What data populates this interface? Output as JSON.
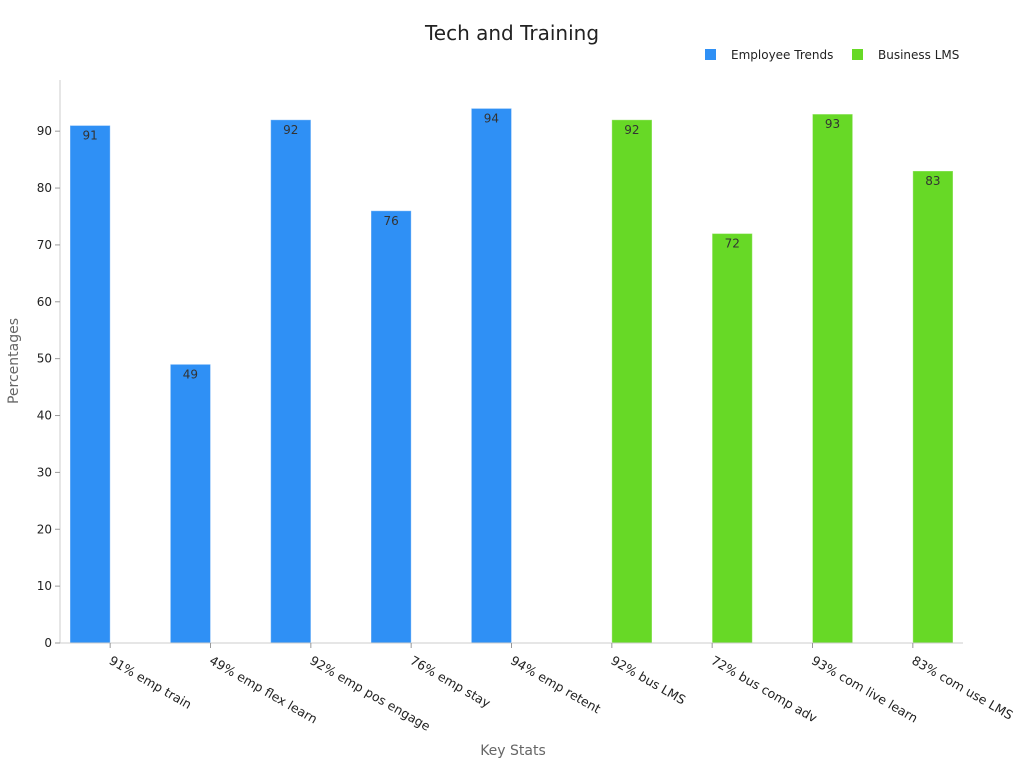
{
  "chart_data": {
    "type": "bar",
    "title": "Tech and Training",
    "xlabel": "Key Stats",
    "ylabel": "Percentages",
    "ylim": [
      0,
      99
    ],
    "yticks": [
      0,
      10,
      20,
      30,
      40,
      50,
      60,
      70,
      80,
      90
    ],
    "grid": false,
    "legend_position": "top-right",
    "categories": [
      "91% emp train",
      "49% emp flex learn",
      "92% emp pos engage",
      "76% emp stay",
      "94% emp retent",
      "92% bus LMS",
      "72% bus comp adv",
      "93% com live learn",
      "83% com use LMS"
    ],
    "series": [
      {
        "name": "Employee Trends",
        "color": "#2f90f5",
        "values": [
          91,
          49,
          92,
          76,
          94,
          null,
          null,
          null,
          null
        ]
      },
      {
        "name": "Business LMS",
        "color": "#67d926",
        "values": [
          null,
          null,
          null,
          null,
          null,
          92,
          72,
          93,
          83
        ]
      }
    ]
  }
}
